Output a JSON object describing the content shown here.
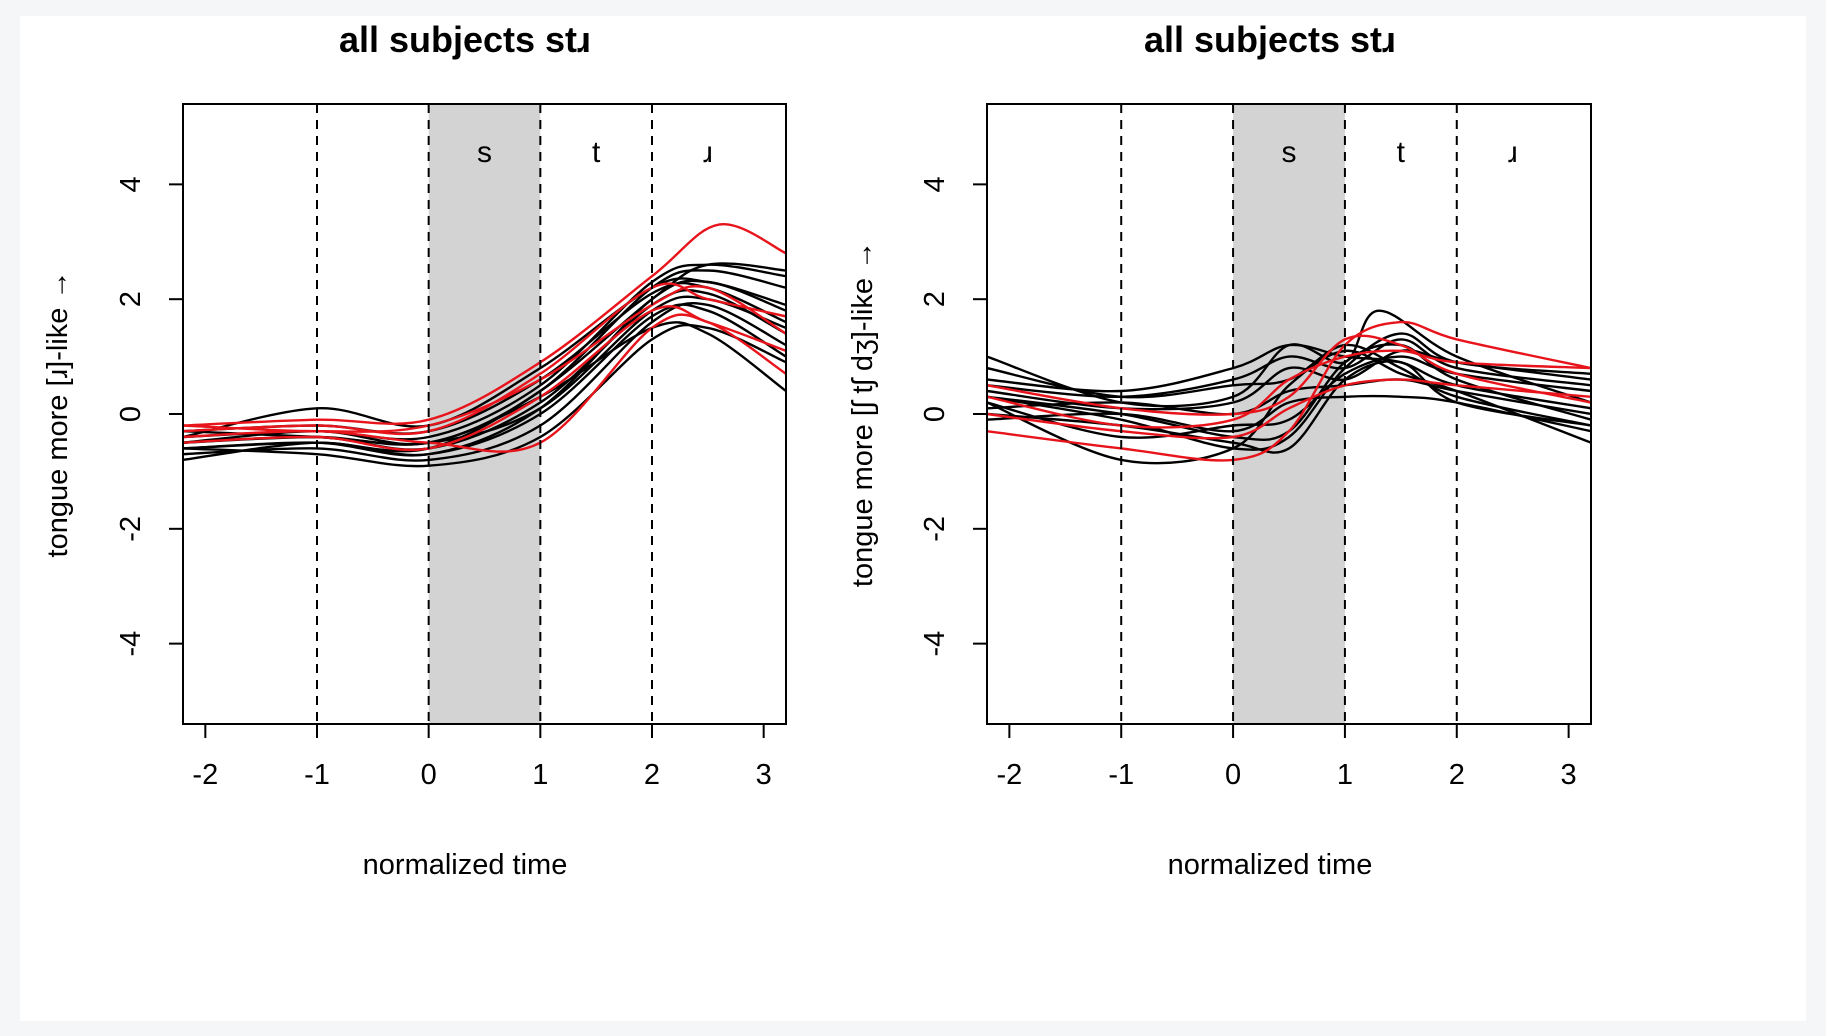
{
  "chart_data": [
    {
      "type": "line",
      "title": "all subjects stɹ",
      "xlabel": "normalized time",
      "ylabel": "tongue more [ɹ]-like →",
      "xlim": [
        -2.2,
        3.2
      ],
      "ylim": [
        -5.4,
        5.4
      ],
      "xticks": [
        "-2",
        "-1",
        "0",
        "1",
        "2",
        "3"
      ],
      "yticks": [
        "-4",
        "-2",
        "0",
        "2",
        "4"
      ],
      "boundaries": [
        -1,
        0,
        1,
        2
      ],
      "shaded_interval": [
        0,
        1
      ],
      "segment_labels": [
        "s",
        "t",
        "ɹ"
      ],
      "colors": {
        "black_curves": "#000000",
        "red_curves": "#e8141b",
        "shade": "#d3d3d3"
      },
      "series": [
        {
          "color": "black",
          "x": [
            -2.2,
            -1,
            0,
            1,
            2,
            2.5,
            3.2
          ],
          "y": [
            -0.6,
            -0.5,
            -0.7,
            0.1,
            2.0,
            2.3,
            1.8
          ]
        },
        {
          "color": "black",
          "x": [
            -2.2,
            -1,
            0,
            1,
            2,
            2.5,
            3.2
          ],
          "y": [
            -0.5,
            -0.3,
            -0.5,
            0.4,
            2.2,
            2.5,
            2.2
          ]
        },
        {
          "color": "black",
          "x": [
            -2.2,
            -1,
            0,
            1,
            2,
            2.5,
            3.2
          ],
          "y": [
            -0.7,
            -0.6,
            -0.8,
            -0.2,
            1.6,
            1.9,
            1.2
          ]
        },
        {
          "color": "black",
          "x": [
            -2.2,
            -1,
            0,
            1,
            2,
            2.5,
            3.2
          ],
          "y": [
            -0.4,
            -0.3,
            -0.4,
            0.5,
            2.3,
            2.6,
            2.4
          ]
        },
        {
          "color": "black",
          "x": [
            -2.2,
            -1,
            0,
            1,
            2,
            2.5,
            3.2
          ],
          "y": [
            -0.3,
            -0.2,
            -0.3,
            0.6,
            2.1,
            2.2,
            1.6
          ]
        },
        {
          "color": "black",
          "x": [
            -2.2,
            -1,
            0,
            1,
            2,
            2.5,
            3.2
          ],
          "y": [
            -0.6,
            -0.7,
            -0.9,
            -0.4,
            1.3,
            1.5,
            0.9
          ]
        },
        {
          "color": "black",
          "x": [
            -2.2,
            -1,
            0,
            1,
            2,
            2.5,
            3.2
          ],
          "y": [
            -0.5,
            -0.4,
            -0.6,
            0.2,
            1.9,
            2.1,
            1.4
          ]
        },
        {
          "color": "black",
          "x": [
            -2.2,
            -1,
            0,
            1,
            2,
            2.5,
            3.2
          ],
          "y": [
            -0.8,
            -0.5,
            -0.7,
            0.0,
            1.7,
            1.8,
            1.0
          ]
        },
        {
          "color": "black",
          "x": [
            -2.2,
            -1,
            0,
            1,
            2,
            2.5,
            3.2
          ],
          "y": [
            -0.4,
            0.1,
            -0.2,
            0.8,
            2.2,
            2.3,
            1.9
          ]
        },
        {
          "color": "black",
          "x": [
            -2.2,
            -1,
            0,
            1,
            2,
            2.5,
            3.2
          ],
          "y": [
            -0.5,
            -0.4,
            -0.5,
            0.3,
            1.5,
            1.4,
            0.4
          ]
        },
        {
          "color": "black",
          "x": [
            -2.2,
            -1,
            0,
            1,
            2,
            2.5,
            3.2
          ],
          "y": [
            -0.6,
            -0.5,
            -0.6,
            0.4,
            2.0,
            2.6,
            2.5
          ]
        },
        {
          "color": "black",
          "x": [
            -2.2,
            -1,
            0,
            1,
            2,
            2.5,
            3.2
          ],
          "y": [
            -0.3,
            -0.4,
            -0.5,
            0.1,
            1.8,
            2.0,
            1.5
          ]
        },
        {
          "color": "red",
          "x": [
            -2.2,
            -1,
            0,
            1,
            2,
            2.6,
            3.2
          ],
          "y": [
            -0.2,
            -0.1,
            -0.1,
            0.9,
            2.4,
            3.3,
            2.8
          ]
        },
        {
          "color": "red",
          "x": [
            -2.2,
            -1,
            0,
            1,
            2,
            2.5,
            3.2
          ],
          "y": [
            -0.3,
            -0.2,
            -0.3,
            0.7,
            2.2,
            2.0,
            1.7
          ]
        },
        {
          "color": "red",
          "x": [
            -2.2,
            -1,
            0,
            1,
            2,
            2.5,
            3.2
          ],
          "y": [
            -0.4,
            -0.3,
            -0.5,
            -0.5,
            1.5,
            1.6,
            0.7
          ]
        },
        {
          "color": "red",
          "x": [
            -2.2,
            -1,
            0,
            1,
            2,
            2.5,
            3.2
          ],
          "y": [
            -0.5,
            -0.4,
            -0.6,
            0.3,
            1.8,
            1.6,
            1.1
          ]
        },
        {
          "color": "red",
          "x": [
            -2.2,
            -1,
            0,
            1,
            2,
            2.5,
            3.2
          ],
          "y": [
            -0.2,
            -0.3,
            -0.2,
            0.6,
            1.9,
            2.2,
            1.4
          ]
        }
      ]
    },
    {
      "type": "line",
      "title": "all subjects stɹ",
      "xlabel": "normalized time",
      "ylabel": "tongue more [ʃ tʃ dʒ]-like →",
      "xlim": [
        -2.2,
        3.2
      ],
      "ylim": [
        -5.4,
        5.4
      ],
      "xticks": [
        "-2",
        "-1",
        "0",
        "1",
        "2",
        "3"
      ],
      "yticks": [
        "-4",
        "-2",
        "0",
        "2",
        "4"
      ],
      "boundaries": [
        -1,
        0,
        1,
        2
      ],
      "shaded_interval": [
        0,
        1
      ],
      "segment_labels": [
        "s",
        "t",
        "ɹ"
      ],
      "colors": {
        "black_curves": "#000000",
        "red_curves": "#e8141b",
        "shade": "#d3d3d3"
      },
      "series": [
        {
          "color": "black",
          "x": [
            -2.2,
            -1,
            0,
            0.5,
            1,
            1.3,
            2,
            3.2
          ],
          "y": [
            1.0,
            0.2,
            0.3,
            1.2,
            0.9,
            1.8,
            1.0,
            0.2
          ]
        },
        {
          "color": "black",
          "x": [
            -2.2,
            -1,
            0,
            0.5,
            1,
            1.5,
            2,
            3.2
          ],
          "y": [
            0.5,
            0.3,
            0.6,
            1.0,
            0.8,
            1.3,
            0.8,
            0.5
          ]
        },
        {
          "color": "black",
          "x": [
            -2.2,
            -1,
            0,
            0.5,
            1,
            1.5,
            2,
            3.2
          ],
          "y": [
            0.3,
            0.0,
            -0.4,
            -0.3,
            0.9,
            1.2,
            0.6,
            -0.1
          ]
        },
        {
          "color": "black",
          "x": [
            -2.2,
            -1,
            0,
            0.5,
            1,
            1.5,
            2,
            3.2
          ],
          "y": [
            0.2,
            -0.8,
            -0.6,
            0.5,
            1.1,
            0.7,
            0.4,
            -0.5
          ]
        },
        {
          "color": "black",
          "x": [
            -2.2,
            -1,
            0,
            0.5,
            1,
            1.5,
            2,
            3.2
          ],
          "y": [
            0.0,
            -0.2,
            -0.5,
            -0.6,
            0.6,
            0.9,
            0.2,
            -0.2
          ]
        },
        {
          "color": "black",
          "x": [
            -2.2,
            -1,
            0,
            0.5,
            1,
            1.5,
            2,
            3.2
          ],
          "y": [
            0.4,
            0.1,
            0.2,
            0.8,
            0.6,
            1.1,
            0.9,
            0.6
          ]
        },
        {
          "color": "black",
          "x": [
            -2.2,
            -1,
            0,
            0.5,
            1,
            1.5,
            2,
            3.2
          ],
          "y": [
            -0.1,
            0.0,
            -0.3,
            0.2,
            0.3,
            0.3,
            0.2,
            -0.3
          ]
        },
        {
          "color": "black",
          "x": [
            -2.2,
            -1,
            0,
            0.5,
            1,
            1.5,
            2,
            3.2
          ],
          "y": [
            0.6,
            0.4,
            0.8,
            1.2,
            1.0,
            0.9,
            0.5,
            0.1
          ]
        },
        {
          "color": "black",
          "x": [
            -2.2,
            -1,
            0,
            0.5,
            1,
            1.5,
            2,
            3.2
          ],
          "y": [
            0.2,
            -0.4,
            -0.2,
            -0.1,
            0.7,
            1.0,
            0.7,
            0.4
          ]
        },
        {
          "color": "black",
          "x": [
            -2.2,
            -1,
            0,
            0.5,
            1,
            1.5,
            2,
            3.2
          ],
          "y": [
            0.8,
            0.3,
            0.5,
            0.6,
            1.2,
            0.8,
            0.3,
            -0.2
          ]
        },
        {
          "color": "black",
          "x": [
            -2.2,
            -1,
            0,
            0.5,
            1,
            1.5,
            2,
            3.2
          ],
          "y": [
            0.1,
            0.2,
            0.0,
            0.4,
            0.5,
            0.6,
            0.4,
            0.0
          ]
        },
        {
          "color": "black",
          "x": [
            -2.2,
            -1,
            0,
            0.5,
            1,
            1.5,
            2,
            3.2
          ],
          "y": [
            0.3,
            -0.1,
            -0.6,
            -0.4,
            0.8,
            1.4,
            0.9,
            0.7
          ]
        },
        {
          "color": "red",
          "x": [
            -2.2,
            -1,
            0,
            0.5,
            1,
            1.5,
            2,
            3.2
          ],
          "y": [
            -0.3,
            -0.6,
            -0.8,
            -0.3,
            1.2,
            1.6,
            1.3,
            0.8
          ]
        },
        {
          "color": "red",
          "x": [
            -2.2,
            -1,
            0,
            0.5,
            1,
            1.5,
            2,
            3.2
          ],
          "y": [
            0.5,
            0.1,
            0.0,
            0.3,
            1.3,
            1.2,
            0.7,
            0.2
          ]
        },
        {
          "color": "red",
          "x": [
            -2.2,
            -1,
            0,
            0.5,
            1,
            1.5,
            2,
            3.2
          ],
          "y": [
            0.3,
            -0.2,
            -0.1,
            0.6,
            1.0,
            1.1,
            0.9,
            0.8
          ]
        },
        {
          "color": "red",
          "x": [
            -2.2,
            -1,
            0,
            0.5,
            1,
            1.5,
            2,
            3.2
          ],
          "y": [
            0.0,
            -0.3,
            -0.4,
            0.1,
            0.5,
            0.6,
            0.5,
            0.3
          ]
        }
      ]
    }
  ]
}
